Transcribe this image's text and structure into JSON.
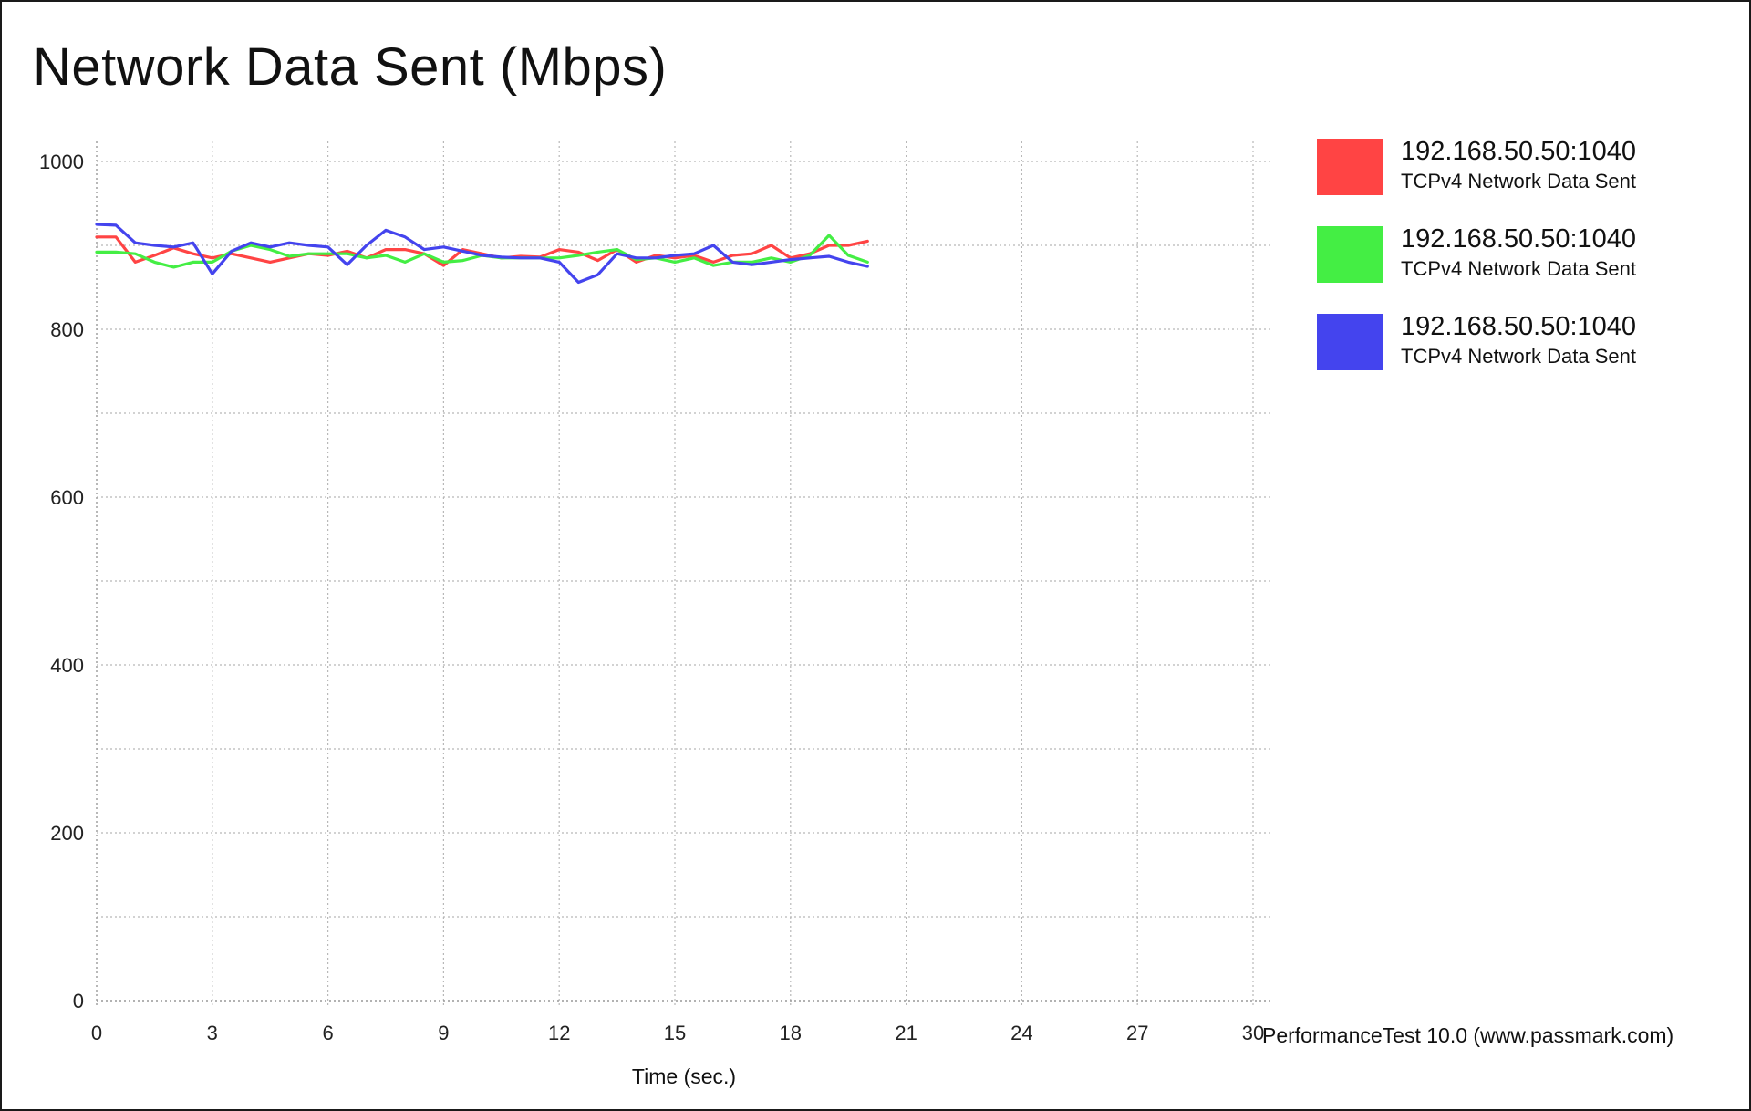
{
  "chart_data": {
    "type": "line",
    "title": "Network Data Sent (Mbps)",
    "xlabel": "Time (sec.)",
    "ylabel": "",
    "xlim": [
      0,
      30
    ],
    "ylim": [
      0,
      1000
    ],
    "x_ticks": [
      "0",
      "3",
      "6",
      "9",
      "12",
      "15",
      "18",
      "21",
      "24",
      "27",
      "30"
    ],
    "y_ticks": [
      "0",
      "200",
      "400",
      "600",
      "800",
      "1000"
    ],
    "grid": true,
    "legend_position": "right",
    "series": [
      {
        "name": "192.168.50.50:1040",
        "description": "TCPv4 Network Data Sent",
        "color": "#ff4444",
        "x": [
          0,
          0.5,
          1,
          1.5,
          2,
          2.5,
          3,
          3.5,
          4,
          4.5,
          5,
          5.5,
          6,
          6.5,
          7,
          7.5,
          8,
          8.5,
          9,
          9.5,
          10,
          10.5,
          11,
          11.5,
          12,
          12.5,
          13,
          13.5,
          14,
          14.5,
          15,
          15.5,
          16,
          16.5,
          17,
          17.5,
          18,
          18.5,
          19,
          19.5,
          20
        ],
        "y": [
          910,
          910,
          880,
          888,
          897,
          890,
          885,
          890,
          885,
          880,
          885,
          890,
          888,
          893,
          885,
          895,
          895,
          890,
          876,
          895,
          890,
          885,
          887,
          886,
          895,
          892,
          882,
          895,
          880,
          888,
          885,
          888,
          880,
          888,
          890,
          900,
          885,
          890,
          900,
          900,
          905
        ]
      },
      {
        "name": "192.168.50.50:1040",
        "description": "TCPv4 Network Data Sent",
        "color": "#44ee44",
        "x": [
          0,
          0.5,
          1,
          1.5,
          2,
          2.5,
          3,
          3.5,
          4,
          4.5,
          5,
          5.5,
          6,
          6.5,
          7,
          7.5,
          8,
          8.5,
          9,
          9.5,
          10,
          10.5,
          11,
          11.5,
          12,
          12.5,
          13,
          13.5,
          14,
          14.5,
          15,
          15.5,
          16,
          16.5,
          17,
          17.5,
          18,
          18.5,
          19,
          19.5,
          20
        ],
        "y": [
          892,
          892,
          890,
          880,
          874,
          880,
          880,
          893,
          900,
          895,
          887,
          890,
          890,
          890,
          885,
          888,
          880,
          890,
          880,
          882,
          888,
          885,
          885,
          885,
          885,
          888,
          892,
          895,
          883,
          885,
          880,
          885,
          876,
          880,
          880,
          885,
          880,
          888,
          912,
          888,
          880
        ]
      },
      {
        "name": "192.168.50.50:1040",
        "description": "TCPv4 Network Data Sent",
        "color": "#4444ee",
        "x": [
          0,
          0.5,
          1,
          1.5,
          2,
          2.5,
          3,
          3.5,
          4,
          4.5,
          5,
          5.5,
          6,
          6.5,
          7,
          7.5,
          8,
          8.5,
          9,
          9.5,
          10,
          10.5,
          11,
          11.5,
          12,
          12.5,
          13,
          13.5,
          14,
          14.5,
          15,
          15.5,
          16,
          16.5,
          17,
          17.5,
          18,
          18.5,
          19,
          19.5,
          20
        ],
        "y": [
          925,
          924,
          903,
          900,
          898,
          903,
          866,
          893,
          903,
          898,
          903,
          900,
          898,
          877,
          900,
          918,
          910,
          895,
          898,
          893,
          888,
          886,
          885,
          885,
          880,
          856,
          865,
          890,
          885,
          885,
          888,
          890,
          900,
          880,
          877,
          880,
          883,
          885,
          887,
          880,
          875
        ]
      }
    ]
  },
  "footer": {
    "credit": "PerformanceTest 10.0 (www.passmark.com)"
  }
}
